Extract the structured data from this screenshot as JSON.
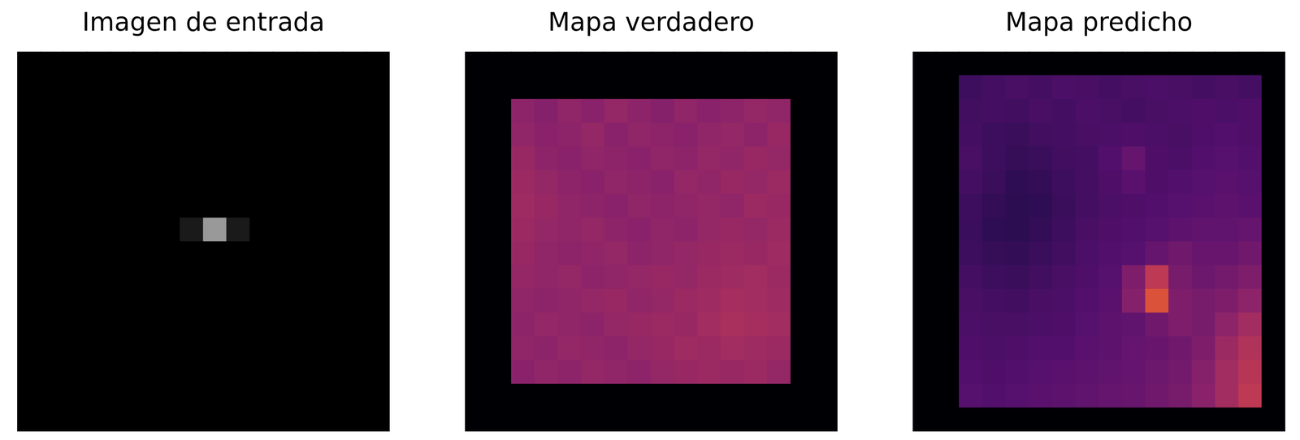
{
  "chart_data": [
    {
      "type": "heatmap",
      "title": "Imagen de entrada",
      "color": "gray",
      "tick_labels": false,
      "cells": [
        [
          0,
          0,
          0,
          0,
          0,
          0,
          0,
          0,
          0,
          0,
          0,
          0,
          0,
          0,
          0,
          0
        ],
        [
          0,
          0,
          0,
          0,
          0,
          0,
          0,
          0,
          0,
          0,
          0,
          0,
          0,
          0,
          0,
          0
        ],
        [
          0,
          0,
          0,
          0,
          0,
          0,
          0,
          0,
          0,
          0,
          0,
          0,
          0,
          0,
          0,
          0
        ],
        [
          0,
          0,
          0,
          0,
          0,
          0,
          0,
          0,
          0,
          0,
          0,
          0,
          0,
          0,
          0,
          0
        ],
        [
          0,
          0,
          0,
          0,
          0,
          0,
          0,
          0,
          0,
          0,
          0,
          0,
          0,
          0,
          0,
          0
        ],
        [
          0,
          0,
          0,
          0,
          0,
          0,
          0,
          0,
          0,
          0,
          0,
          0,
          0,
          0,
          0,
          0
        ],
        [
          0,
          0,
          0,
          0,
          0,
          0,
          0,
          0,
          0,
          0,
          0,
          0,
          0,
          0,
          0,
          0
        ],
        [
          0,
          0,
          0,
          0,
          0,
          0,
          0,
          0.1,
          0.6,
          0.1,
          0,
          0,
          0,
          0,
          0,
          0
        ],
        [
          0,
          0,
          0,
          0,
          0,
          0,
          0,
          0,
          0,
          0,
          0,
          0,
          0,
          0,
          0,
          0
        ],
        [
          0,
          0,
          0,
          0,
          0,
          0,
          0,
          0,
          0,
          0,
          0,
          0,
          0,
          0,
          0,
          0
        ],
        [
          0,
          0,
          0,
          0,
          0,
          0,
          0,
          0,
          0,
          0,
          0,
          0,
          0,
          0,
          0,
          0
        ],
        [
          0,
          0,
          0,
          0,
          0,
          0,
          0,
          0,
          0,
          0,
          0,
          0,
          0,
          0,
          0,
          0
        ],
        [
          0,
          0,
          0,
          0,
          0,
          0,
          0,
          0,
          0,
          0,
          0,
          0,
          0,
          0,
          0,
          0
        ],
        [
          0,
          0,
          0,
          0,
          0,
          0,
          0,
          0,
          0,
          0,
          0,
          0,
          0,
          0,
          0,
          0
        ],
        [
          0,
          0,
          0,
          0,
          0,
          0,
          0,
          0,
          0,
          0,
          0,
          0,
          0,
          0,
          0,
          0
        ],
        [
          0,
          0,
          0,
          0,
          0,
          0,
          0,
          0,
          0,
          0,
          0,
          0,
          0,
          0,
          0,
          0
        ]
      ]
    },
    {
      "type": "heatmap",
      "title": "Mapa verdadero",
      "color": "inferno",
      "tick_labels": false,
      "cells": [
        [
          0,
          0,
          0,
          0,
          0,
          0,
          0,
          0,
          0,
          0,
          0,
          0,
          0,
          0,
          0,
          0
        ],
        [
          0,
          0,
          0,
          0,
          0,
          0,
          0,
          0,
          0,
          0,
          0,
          0,
          0,
          0,
          0,
          0
        ],
        [
          0,
          0,
          0.44,
          0.42,
          0.45,
          0.43,
          0.46,
          0.44,
          0.42,
          0.45,
          0.43,
          0.44,
          0.46,
          0.45,
          0,
          0
        ],
        [
          0,
          0,
          0.45,
          0.43,
          0.44,
          0.46,
          0.43,
          0.45,
          0.44,
          0.43,
          0.45,
          0.46,
          0.44,
          0.47,
          0,
          0
        ],
        [
          0,
          0,
          0.47,
          0.44,
          0.43,
          0.45,
          0.44,
          0.43,
          0.45,
          0.44,
          0.46,
          0.45,
          0.47,
          0.46,
          0,
          0
        ],
        [
          0,
          0,
          0.48,
          0.46,
          0.44,
          0.43,
          0.45,
          0.44,
          0.43,
          0.46,
          0.45,
          0.47,
          0.46,
          0.48,
          0,
          0
        ],
        [
          0,
          0,
          0.49,
          0.47,
          0.45,
          0.44,
          0.43,
          0.45,
          0.44,
          0.45,
          0.46,
          0.45,
          0.48,
          0.47,
          0,
          0
        ],
        [
          0,
          0,
          0.48,
          0.46,
          0.45,
          0.46,
          0.44,
          0.43,
          0.45,
          0.44,
          0.46,
          0.47,
          0.46,
          0.48,
          0,
          0
        ],
        [
          0,
          0,
          0.47,
          0.45,
          0.44,
          0.45,
          0.46,
          0.44,
          0.45,
          0.46,
          0.47,
          0.48,
          0.47,
          0.49,
          0,
          0
        ],
        [
          0,
          0,
          0.46,
          0.45,
          0.46,
          0.44,
          0.45,
          0.46,
          0.47,
          0.46,
          0.48,
          0.49,
          0.5,
          0.48,
          0,
          0
        ],
        [
          0,
          0,
          0.45,
          0.44,
          0.45,
          0.46,
          0.47,
          0.45,
          0.46,
          0.48,
          0.49,
          0.51,
          0.5,
          0.49,
          0,
          0
        ],
        [
          0,
          0,
          0.44,
          0.46,
          0.45,
          0.44,
          0.46,
          0.47,
          0.48,
          0.47,
          0.5,
          0.52,
          0.51,
          0.5,
          0,
          0
        ],
        [
          0,
          0,
          0.45,
          0.44,
          0.46,
          0.45,
          0.44,
          0.46,
          0.47,
          0.49,
          0.48,
          0.5,
          0.49,
          0.48,
          0,
          0
        ],
        [
          0,
          0,
          0.43,
          0.45,
          0.44,
          0.46,
          0.45,
          0.44,
          0.46,
          0.47,
          0.48,
          0.47,
          0.48,
          0.46,
          0,
          0
        ],
        [
          0,
          0,
          0,
          0,
          0,
          0,
          0,
          0,
          0,
          0,
          0,
          0,
          0,
          0,
          0,
          0
        ],
        [
          0,
          0,
          0,
          0,
          0,
          0,
          0,
          0,
          0,
          0,
          0,
          0,
          0,
          0,
          0,
          0
        ]
      ]
    },
    {
      "type": "heatmap",
      "title": "Mapa predicho",
      "color": "inferno",
      "tick_labels": false,
      "cells": [
        [
          0,
          0,
          0,
          0,
          0,
          0,
          0,
          0,
          0,
          0,
          0,
          0,
          0,
          0,
          0,
          0
        ],
        [
          0,
          0,
          0.22,
          0.24,
          0.25,
          0.24,
          0.26,
          0.25,
          0.24,
          0.25,
          0.26,
          0.25,
          0.24,
          0.25,
          0.24,
          0
        ],
        [
          0,
          0,
          0.23,
          0.24,
          0.23,
          0.25,
          0.24,
          0.26,
          0.25,
          0.24,
          0.25,
          0.26,
          0.27,
          0.26,
          0.27,
          0
        ],
        [
          0,
          0,
          0.24,
          0.22,
          0.21,
          0.23,
          0.24,
          0.25,
          0.26,
          0.27,
          0.26,
          0.25,
          0.27,
          0.28,
          0.27,
          0
        ],
        [
          0,
          0,
          0.25,
          0.22,
          0.2,
          0.21,
          0.23,
          0.24,
          0.28,
          0.33,
          0.27,
          0.26,
          0.28,
          0.29,
          0.28,
          0
        ],
        [
          0,
          0,
          0.24,
          0.21,
          0.18,
          0.19,
          0.22,
          0.24,
          0.27,
          0.3,
          0.27,
          0.28,
          0.29,
          0.3,
          0.29,
          0
        ],
        [
          0,
          0,
          0.22,
          0.19,
          0.17,
          0.18,
          0.21,
          0.24,
          0.26,
          0.27,
          0.28,
          0.29,
          0.3,
          0.31,
          0.3,
          0
        ],
        [
          0,
          0,
          0.21,
          0.18,
          0.17,
          0.19,
          0.22,
          0.25,
          0.27,
          0.28,
          0.29,
          0.31,
          0.32,
          0.32,
          0.33,
          0
        ],
        [
          0,
          0,
          0.22,
          0.2,
          0.19,
          0.21,
          0.23,
          0.26,
          0.28,
          0.29,
          0.33,
          0.36,
          0.34,
          0.34,
          0.36,
          0
        ],
        [
          0,
          0,
          0.24,
          0.22,
          0.21,
          0.23,
          0.25,
          0.27,
          0.29,
          0.4,
          0.58,
          0.38,
          0.35,
          0.37,
          0.4,
          0
        ],
        [
          0,
          0,
          0.25,
          0.24,
          0.23,
          0.25,
          0.26,
          0.28,
          0.3,
          0.42,
          0.68,
          0.4,
          0.38,
          0.4,
          0.44,
          0
        ],
        [
          0,
          0,
          0.26,
          0.25,
          0.25,
          0.26,
          0.27,
          0.29,
          0.31,
          0.32,
          0.36,
          0.4,
          0.38,
          0.44,
          0.5,
          0
        ],
        [
          0,
          0,
          0.27,
          0.26,
          0.27,
          0.28,
          0.28,
          0.3,
          0.31,
          0.33,
          0.34,
          0.36,
          0.4,
          0.48,
          0.54,
          0
        ],
        [
          0,
          0,
          0.28,
          0.27,
          0.28,
          0.29,
          0.3,
          0.31,
          0.32,
          0.33,
          0.35,
          0.37,
          0.42,
          0.5,
          0.56,
          0
        ],
        [
          0,
          0,
          0.29,
          0.28,
          0.29,
          0.3,
          0.31,
          0.32,
          0.33,
          0.34,
          0.36,
          0.38,
          0.43,
          0.5,
          0.58,
          0
        ],
        [
          0,
          0,
          0,
          0,
          0,
          0,
          0,
          0,
          0,
          0,
          0,
          0,
          0,
          0,
          0,
          0
        ]
      ]
    }
  ]
}
